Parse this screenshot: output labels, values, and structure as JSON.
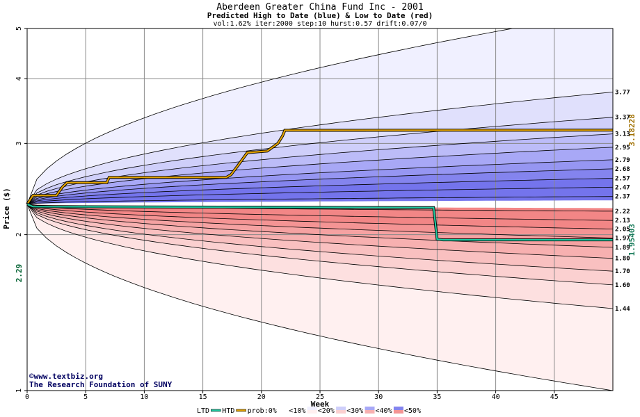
{
  "chart_data": {
    "type": "area",
    "title": "Aberdeen Greater China Fund Inc - 2001",
    "subtitle": "Predicted High to Date (blue) &  Low to Date (red)",
    "params": "vol:1.62% iter:2000 step:10 hurst:0.57 drift:0.07/0",
    "xlabel": "Week",
    "ylabel": "Price ($)",
    "xlim": [
      0,
      50
    ],
    "ylim": [
      1,
      5
    ],
    "y_scale": "log",
    "grid": true,
    "x_ticks": [
      0,
      5,
      10,
      15,
      20,
      25,
      30,
      35,
      40,
      45
    ],
    "y_ticks": [
      1,
      2,
      3,
      4,
      5
    ],
    "start_price": 2.29,
    "start_label": "2.29",
    "htd_final_label": "3.18228",
    "ltd_final_label": "1.95403",
    "high_percentile_labels": [
      3.77,
      3.37,
      3.13,
      2.95,
      2.79,
      2.68,
      2.57,
      2.47,
      2.37
    ],
    "low_percentile_labels": [
      2.22,
      2.13,
      2.05,
      1.97,
      1.89,
      1.8,
      1.7,
      1.6,
      1.44
    ],
    "high_percentile_label_text": [
      "3.77",
      "3.37",
      "3.13",
      "2.95",
      "2.79",
      "2.68",
      "2.57",
      "2.47",
      "2.37"
    ],
    "low_percentile_label_text": [
      "2.22",
      "2.13",
      "2.05",
      "1.97",
      "1.89",
      "1.80",
      "1.70",
      "1.60",
      "1.44"
    ],
    "outer_upper_final": 5.4,
    "outer_lower_final": 1.0,
    "htd_series": {
      "name": "HTD",
      "points": [
        [
          0,
          2.29
        ],
        [
          0.5,
          2.38
        ],
        [
          2.5,
          2.38
        ],
        [
          3,
          2.47
        ],
        [
          3.4,
          2.52
        ],
        [
          6.8,
          2.52
        ],
        [
          7,
          2.58
        ],
        [
          17,
          2.58
        ],
        [
          17.4,
          2.61
        ],
        [
          18,
          2.72
        ],
        [
          18.4,
          2.8
        ],
        [
          18.8,
          2.88
        ],
        [
          20.5,
          2.9
        ],
        [
          21.4,
          3.0
        ],
        [
          21.8,
          3.1
        ],
        [
          22,
          3.18
        ],
        [
          50,
          3.18228
        ]
      ]
    },
    "ltd_series": {
      "name": "LTD",
      "points": [
        [
          0,
          2.29
        ],
        [
          0.5,
          2.265
        ],
        [
          34.7,
          2.255
        ],
        [
          35,
          1.96
        ],
        [
          35.5,
          1.95403
        ],
        [
          50,
          1.95403
        ]
      ]
    },
    "legend": {
      "ltd": "LTD",
      "htd": "HTD",
      "prob": "prob:0%",
      "items": [
        "<10%",
        "<20%",
        "<30%",
        "<40%",
        "<50%"
      ]
    },
    "colors": {
      "htd_line": "#e0a000",
      "ltd_line": "#20c8a0",
      "htd_label": "#a07000",
      "ltd_label": "#208060",
      "start_label": "#006030",
      "blue_bands": [
        "#f0f0ff",
        "#e0e0fc",
        "#cfcffa",
        "#bcbcf8",
        "#a8a8f6",
        "#9696f2",
        "#8484ee",
        "#7474ec"
      ],
      "red_bands": [
        "#fff0f0",
        "#fde0e0",
        "#fbd0d0",
        "#f9c0c0",
        "#f7b0b0",
        "#f5a2a2",
        "#f49494",
        "#f28686"
      ]
    }
  },
  "credit": {
    "line1": "©www.textbiz.org",
    "line2": "The Research Foundation of SUNY"
  }
}
